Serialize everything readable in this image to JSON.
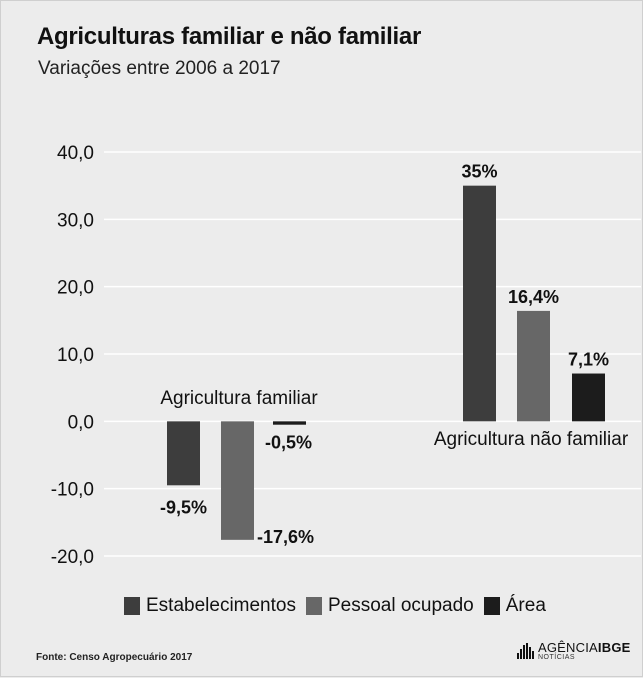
{
  "chart_data": {
    "type": "bar",
    "title": "Agriculturas familiar e não familiar",
    "subtitle": "Variações entre 2006 a 2017",
    "categories": [
      "Agricultura familiar",
      "Agricultura não familiar"
    ],
    "series": [
      {
        "name": "Estabelecimentos",
        "values": [
          -9.5,
          35
        ],
        "labels": [
          "-9,5%",
          "35%"
        ],
        "color": "#3d3d3d"
      },
      {
        "name": "Pessoal ocupado",
        "values": [
          -17.6,
          16.4
        ],
        "labels": [
          "-17,6%",
          "16,4%"
        ],
        "color": "#676767"
      },
      {
        "name": "Área",
        "values": [
          -0.5,
          7.1
        ],
        "labels": [
          "-0,5%",
          "7,1%"
        ],
        "color": "#1c1c1c"
      }
    ],
    "yticks": [
      "40,0",
      "30,0",
      "20,0",
      "10,0",
      "0,0",
      "-10,0",
      "-20,0"
    ],
    "ytick_values": [
      40,
      30,
      20,
      10,
      0,
      -10,
      -20
    ],
    "ylim": [
      -20,
      40
    ],
    "grid": true,
    "legend_position": "bottom"
  },
  "source": "Fonte: Censo Agropecuário 2017",
  "logo": {
    "main": "AGÊNCIA",
    "bold": "IBGE",
    "sub": "NOTÍCIAS"
  }
}
